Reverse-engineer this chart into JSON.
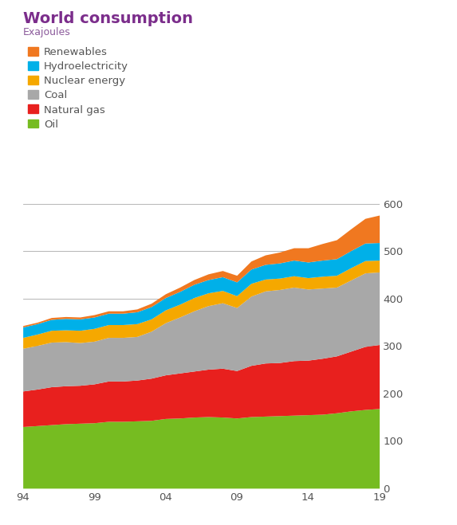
{
  "title": "World consumption",
  "subtitle": "Exajoules",
  "title_color": "#7b2d8b",
  "subtitle_color": "#8b5a9b",
  "years": [
    1994,
    1995,
    1996,
    1997,
    1998,
    1999,
    2000,
    2001,
    2002,
    2003,
    2004,
    2005,
    2006,
    2007,
    2008,
    2009,
    2010,
    2011,
    2012,
    2013,
    2014,
    2015,
    2016,
    2017,
    2018,
    2019
  ],
  "oil": [
    130,
    132,
    134,
    136,
    137,
    138,
    141,
    141,
    142,
    143,
    147,
    148,
    150,
    151,
    150,
    148,
    151,
    152,
    153,
    154,
    155,
    156,
    159,
    163,
    166,
    168
  ],
  "natural_gas": [
    75,
    77,
    80,
    80,
    80,
    82,
    85,
    85,
    86,
    89,
    92,
    95,
    97,
    100,
    103,
    100,
    108,
    112,
    112,
    115,
    115,
    118,
    120,
    126,
    133,
    135
  ],
  "coal": [
    90,
    92,
    94,
    93,
    90,
    90,
    92,
    92,
    92,
    99,
    110,
    118,
    127,
    134,
    138,
    133,
    146,
    152,
    154,
    155,
    150,
    148,
    145,
    150,
    155,
    153
  ],
  "nuclear_energy": [
    23,
    24,
    25,
    25,
    26,
    27,
    27,
    27,
    27,
    26,
    27,
    27,
    28,
    27,
    26,
    25,
    27,
    25,
    24,
    24,
    24,
    25,
    25,
    26,
    26,
    25
  ],
  "hydroelectricity": [
    22,
    22,
    23,
    24,
    24,
    24,
    24,
    24,
    25,
    26,
    26,
    27,
    28,
    28,
    29,
    29,
    30,
    31,
    32,
    33,
    33,
    34,
    35,
    36,
    37,
    37
  ],
  "renewables": [
    3,
    3,
    4,
    4,
    4,
    5,
    5,
    5,
    6,
    7,
    8,
    9,
    10,
    12,
    13,
    14,
    17,
    20,
    23,
    26,
    30,
    35,
    40,
    46,
    52,
    58
  ],
  "colors": {
    "oil": "#76bc21",
    "natural_gas": "#e8201e",
    "coal": "#a8a8a8",
    "nuclear_energy": "#f5a800",
    "hydroelectricity": "#00b0e8",
    "renewables": "#f07820"
  },
  "legend_labels": [
    "Renewables",
    "Hydroelectricity",
    "Nuclear energy",
    "Coal",
    "Natural gas",
    "Oil"
  ],
  "legend_colors": [
    "#f07820",
    "#00b0e8",
    "#f5a800",
    "#a8a8a8",
    "#e8201e",
    "#76bc21"
  ],
  "ylim": [
    0,
    620
  ],
  "yticks": [
    0,
    100,
    200,
    300,
    400,
    500,
    600
  ],
  "xtick_labels": [
    "94",
    "99",
    "04",
    "09",
    "14",
    "19"
  ],
  "xtick_positions": [
    1994,
    1999,
    2004,
    2009,
    2014,
    2019
  ],
  "background_color": "#ffffff",
  "grid_color": "#aaaaaa",
  "tick_label_color": "#555555"
}
